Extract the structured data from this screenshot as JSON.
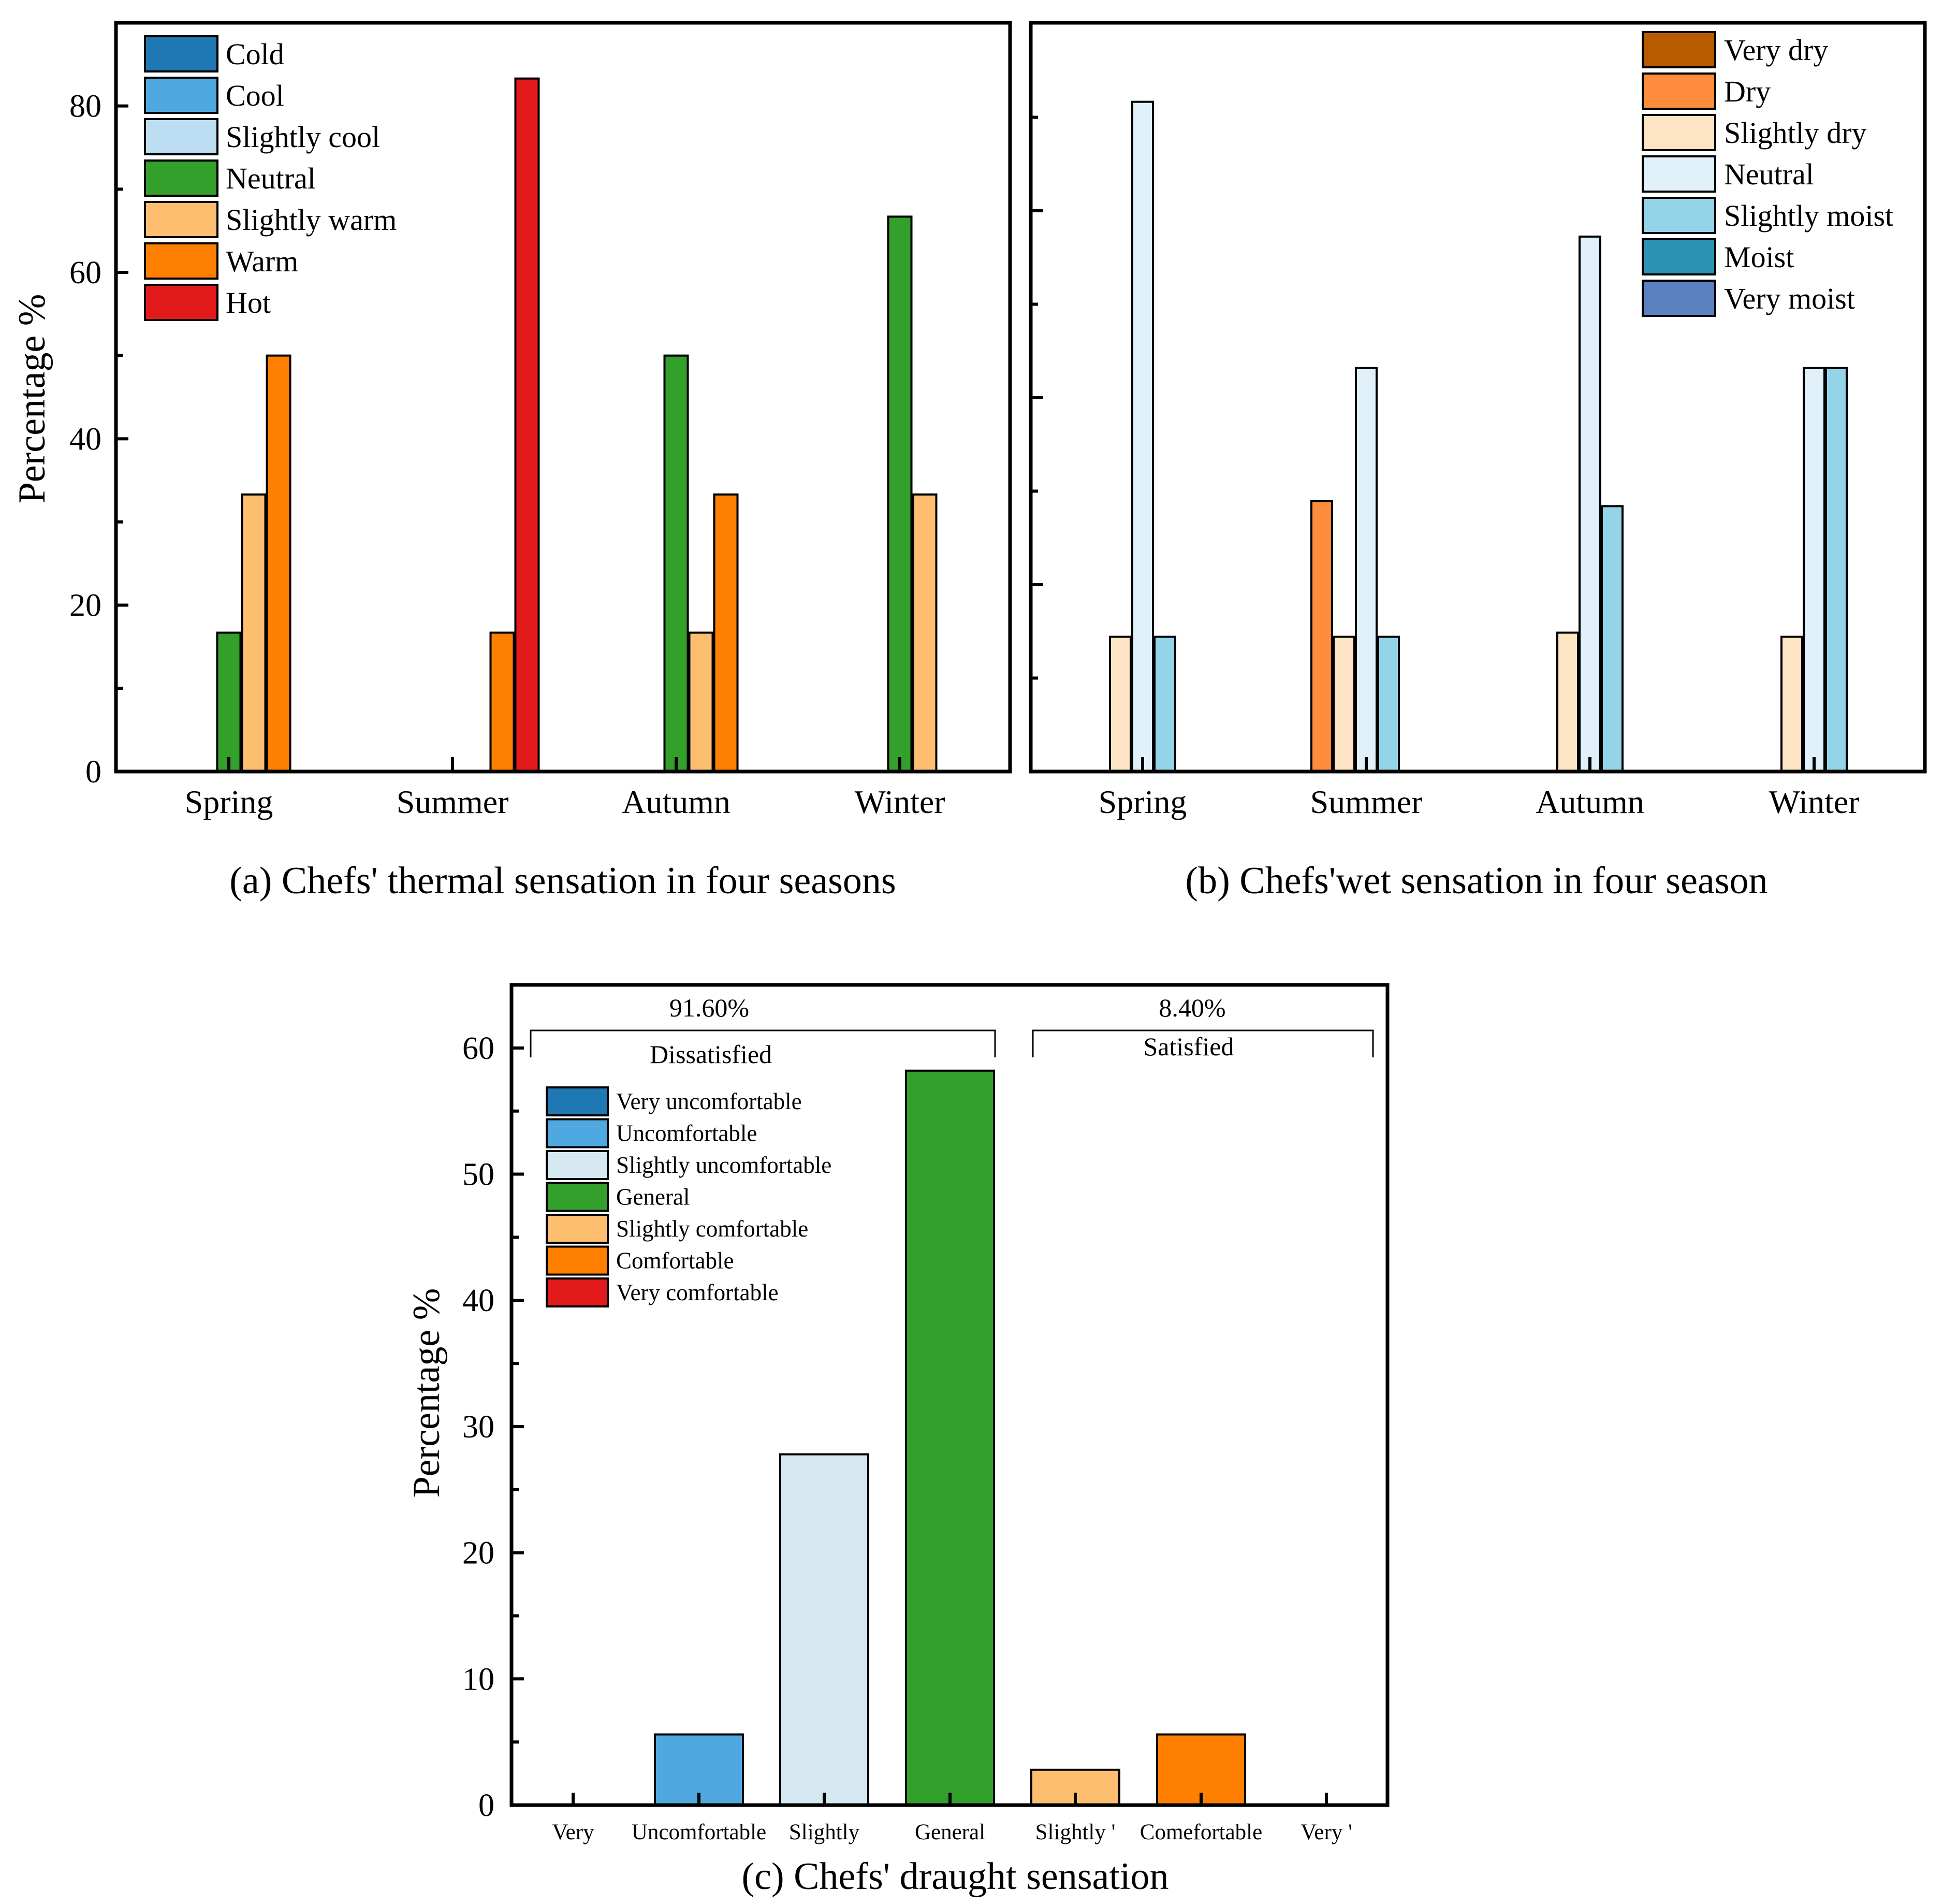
{
  "chart_data": [
    {
      "id": "a",
      "type": "bar",
      "caption": "(a) Chefs' thermal sensation in four seasons",
      "ylabel": "Percentage %",
      "ylim": [
        0,
        90
      ],
      "yticks": [
        0,
        20,
        40,
        60,
        80
      ],
      "categories": [
        "Spring",
        "Summer",
        "Autumn",
        "Winter"
      ],
      "series": [
        {
          "name": "Cold",
          "color": "#1f77b4",
          "values": [
            0,
            0,
            0,
            0
          ]
        },
        {
          "name": "Cool",
          "color": "#4fa8e0",
          "values": [
            0,
            0,
            0,
            0
          ]
        },
        {
          "name": "Slightly cool",
          "color": "#bdddf3",
          "values": [
            0,
            0,
            0,
            0
          ]
        },
        {
          "name": "Neutral",
          "color": "#33a02c",
          "values": [
            16.7,
            0,
            50,
            66.7
          ]
        },
        {
          "name": "Slightly warm",
          "color": "#fdbf6f",
          "values": [
            33.3,
            0,
            16.7,
            33.3
          ]
        },
        {
          "name": "Warm",
          "color": "#ff7f00",
          "values": [
            50,
            16.7,
            33.3,
            0
          ]
        },
        {
          "name": "Hot",
          "color": "#e31a1c",
          "values": [
            0,
            83.3,
            0,
            0
          ]
        }
      ]
    },
    {
      "id": "b",
      "type": "bar",
      "caption": "(b) Chefs'wet sensation in four season",
      "ylim": [
        0,
        90
      ],
      "categories": [
        "Spring",
        "Summer",
        "Autumn",
        "Winter"
      ],
      "series": [
        {
          "name": "Very dry",
          "color": "#b85a00",
          "values": [
            0,
            0,
            0,
            0
          ]
        },
        {
          "name": "Dry",
          "color": "#fd8d3c",
          "values": [
            0,
            32.5,
            0,
            0
          ]
        },
        {
          "name": "Slightly dry",
          "color": "#fde4c4",
          "values": [
            16.2,
            16.2,
            16.7,
            16.2
          ]
        },
        {
          "name": "Neutral",
          "color": "#e1f1f9",
          "values": [
            80.5,
            48.5,
            64.3,
            48.5
          ]
        },
        {
          "name": "Slightly moist",
          "color": "#94d4e9",
          "values": [
            16.2,
            16.2,
            31.9,
            48.5
          ]
        },
        {
          "name": "Moist",
          "color": "#2c93b4",
          "values": [
            0,
            0,
            0,
            0
          ]
        },
        {
          "name": "Very moist",
          "color": "#5b80c0",
          "values": [
            0,
            0,
            0,
            0
          ]
        }
      ]
    },
    {
      "id": "c",
      "type": "bar",
      "caption": "(c) Chefs' draught sensation",
      "ylabel": "Percentage %",
      "ylim": [
        0,
        65
      ],
      "yticks": [
        0,
        10,
        20,
        30,
        40,
        50,
        60
      ],
      "categories": [
        "Very",
        "Uncomfortable",
        "Slightly",
        "General",
        "Slightly '",
        "Comefortable",
        "Very '"
      ],
      "values": [
        0,
        5.6,
        27.8,
        58.2,
        2.8,
        5.6,
        0
      ],
      "colors": [
        "#1f77b4",
        "#4fa8e0",
        "#d6e8f2",
        "#33a02c",
        "#fdbf6f",
        "#ff7f00",
        "#e31a1c"
      ],
      "legend": [
        "Very uncomfortable",
        "Uncomfortable",
        "Slightly uncomfortable",
        "General",
        "Slightly comfortable",
        "Comfortable",
        "Very comfortable"
      ],
      "annotations": {
        "dissatisfied_pct": "91.60%",
        "dissatisfied_label": "Dissatisfied",
        "satisfied_pct": "8.40%",
        "satisfied_label": "Satisfied"
      }
    }
  ]
}
